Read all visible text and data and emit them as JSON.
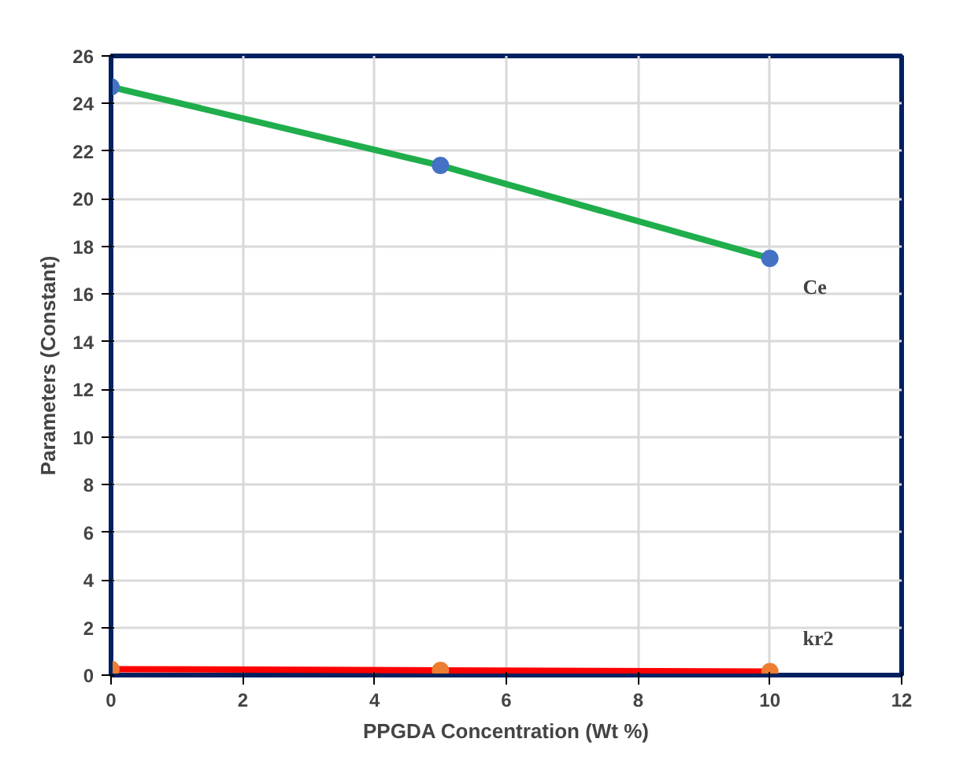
{
  "chart_data": {
    "type": "line",
    "xlabel": "PPGDA Concentration (Wt %)",
    "ylabel": "Parameters (Constant)",
    "x": [
      0,
      5,
      10
    ],
    "series": [
      {
        "name": "Ce",
        "color": "#1fae4b",
        "values": [
          24.7,
          21.4,
          17.5
        ]
      },
      {
        "name": "kr2",
        "color": "#ff0000",
        "values": [
          0.25,
          0.2,
          0.15
        ]
      }
    ],
    "xlim": [
      0,
      12
    ],
    "ylim": [
      0,
      26
    ],
    "xticks": [
      0,
      2,
      4,
      6,
      8,
      10,
      12
    ],
    "yticks": [
      0,
      2,
      4,
      6,
      8,
      10,
      12,
      14,
      16,
      18,
      20,
      22,
      24,
      26
    ],
    "grid": true,
    "marker": "circle",
    "line_style": "solid"
  }
}
